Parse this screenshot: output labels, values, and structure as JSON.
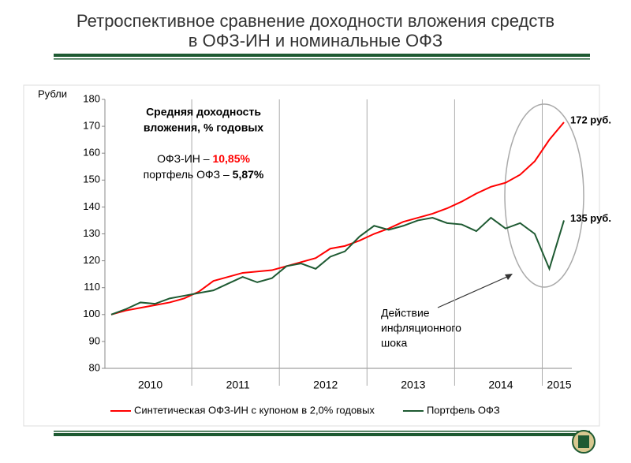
{
  "chart_data": {
    "type": "line",
    "title": [
      "Ретроспективное сравнение доходности вложения средств",
      "в ОФЗ-ИН и номинальные ОФЗ"
    ],
    "y_label": "Рубли",
    "categories": [
      null,
      null,
      null,
      "2010",
      null,
      null,
      null,
      null,
      null,
      "2011",
      null,
      null,
      null,
      null,
      null,
      "2012",
      null,
      null,
      null,
      null,
      null,
      "2013",
      null,
      null,
      null,
      null,
      null,
      "2014",
      null,
      null,
      null,
      "2015"
    ],
    "series": [
      {
        "name": "Синтетическая ОФЗ-ИН с купоном в 2,0% годовых",
        "color": "#ff0000",
        "values": [
          100,
          101.5,
          102.5,
          103.5,
          104.5,
          106,
          108.5,
          112.5,
          114,
          115.5,
          116,
          116.5,
          118,
          119.5,
          121,
          124.5,
          125.5,
          127.5,
          130,
          132,
          134.5,
          136,
          137.5,
          139.5,
          142,
          145,
          147.5,
          149,
          152,
          157,
          165,
          171.5
        ]
      },
      {
        "name": "Портфель ОФЗ",
        "color": "#1e5a32",
        "values": [
          100,
          102,
          104.5,
          104,
          106,
          107,
          108,
          109,
          111.5,
          114,
          112,
          113.5,
          118,
          119,
          117,
          121.5,
          123.5,
          129,
          133,
          131.5,
          133,
          135,
          136,
          134,
          133.5,
          131,
          136,
          132,
          134,
          130,
          117,
          135
        ]
      }
    ],
    "ylim": [
      80,
      180
    ],
    "yticks": [
      80,
      90,
      100,
      110,
      120,
      130,
      140,
      150,
      160,
      170,
      180
    ],
    "end_labels": [
      "172 руб.",
      "135 руб."
    ],
    "box": {
      "heading": [
        "Средняя доходность",
        "вложения, % годовых"
      ],
      "lines": [
        {
          "text": "ОФЗ-ИН – ",
          "value": "10,85%"
        },
        {
          "text": "портфель ОФЗ – ",
          "value": "5,87%"
        }
      ]
    },
    "annotation": [
      "Действие",
      "инфляционного",
      "шока"
    ],
    "legend": "bottom"
  }
}
